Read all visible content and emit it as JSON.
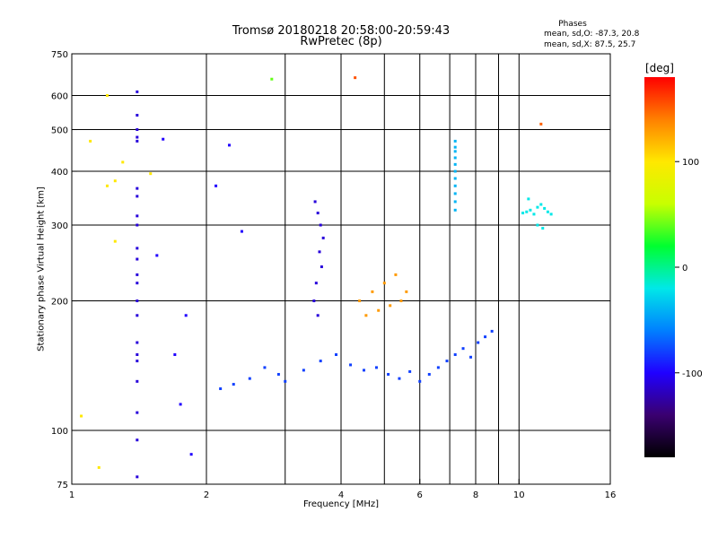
{
  "chart_data": {
    "type": "scatter",
    "title": "Tromsø 20180218 20:58:00-20:59:43",
    "subtitle": "RwPretec (8p)",
    "xlabel": "Frequency [MHz]",
    "ylabel": "Stationary phase Virtual Height [km]",
    "x_scale": "log",
    "y_scale": "log",
    "xlim": [
      1,
      16
    ],
    "ylim": [
      75,
      750
    ],
    "x_ticks": [
      1,
      2,
      4,
      6,
      8,
      10,
      16
    ],
    "y_ticks": [
      75,
      100,
      200,
      300,
      400,
      500,
      600,
      750
    ],
    "x_minor_ticks": [
      3,
      5,
      7,
      9
    ],
    "grid": true,
    "phases_title": "Phases",
    "phase_o": "mean, sd,O: -87.3, 20.8",
    "phase_x": "mean, sd,X:  87.5, 25.7",
    "colorbar": {
      "unit": "[deg]",
      "range": [
        -180,
        180
      ],
      "ticks": [
        100,
        0,
        -100
      ],
      "colors": [
        "#000000",
        "#3a0070",
        "#2000ff",
        "#0080ff",
        "#00e8e8",
        "#00ff30",
        "#c8ff00",
        "#ffe800",
        "#ff8000",
        "#ff0000"
      ]
    },
    "series": [
      {
        "x": [
          1.4,
          1.4,
          1.4,
          1.4,
          1.4,
          1.4,
          1.4,
          1.4,
          1.4,
          1.4,
          1.4,
          1.4,
          1.4,
          1.4,
          1.4,
          1.4,
          1.4,
          1.4,
          1.4,
          1.4,
          1.4,
          1.4
        ],
        "y": [
          612,
          540,
          500,
          480,
          470,
          365,
          350,
          315,
          300,
          265,
          250,
          230,
          220,
          200,
          185,
          160,
          150,
          145,
          130,
          110,
          95,
          78
        ],
        "phase": -110
      },
      {
        "x": [
          7.2,
          7.2,
          7.2,
          7.2,
          7.2,
          7.2,
          7.2,
          7.2,
          7.2,
          7.2,
          7.2
        ],
        "y": [
          470,
          455,
          445,
          430,
          415,
          400,
          385,
          370,
          355,
          340,
          325
        ],
        "phase": -40
      },
      {
        "x": [
          10.2,
          10.4,
          10.6,
          10.8,
          11.0,
          11.2,
          11.4,
          11.6,
          11.8,
          10.5,
          11.0,
          11.3
        ],
        "y": [
          320,
          322,
          325,
          318,
          330,
          335,
          328,
          322,
          318,
          345,
          300,
          295
        ],
        "phase": -20
      },
      {
        "x": [
          11.2
        ],
        "y": [
          515
        ],
        "phase": 150
      },
      {
        "x": [
          4.3
        ],
        "y": [
          660
        ],
        "phase": 155
      },
      {
        "x": [
          2.8
        ],
        "y": [
          655
        ],
        "phase": 40
      },
      {
        "x": [
          1.2,
          1.1,
          1.3,
          1.25,
          1.2,
          1.25,
          1.5,
          1.05,
          1.15
        ],
        "y": [
          600,
          470,
          420,
          380,
          370,
          275,
          395,
          108,
          82
        ],
        "phase": 100
      },
      {
        "x": [
          1.6,
          1.8,
          2.1,
          2.25,
          2.4,
          1.55,
          1.7,
          1.85,
          1.75
        ],
        "y": [
          475,
          185,
          370,
          460,
          290,
          255,
          150,
          88,
          115
        ],
        "phase": -100
      },
      {
        "x": [
          2.5,
          2.3,
          2.15,
          2.7,
          2.9,
          3.0,
          3.3,
          3.6,
          3.9,
          4.2,
          4.5,
          4.8,
          5.1,
          5.4,
          5.7,
          6.0,
          6.3,
          6.6,
          6.9,
          7.2,
          7.5,
          7.8,
          8.1,
          8.4,
          8.7
        ],
        "y": [
          132,
          128,
          125,
          140,
          135,
          130,
          138,
          145,
          150,
          142,
          138,
          140,
          135,
          132,
          137,
          130,
          135,
          140,
          145,
          150,
          155,
          148,
          160,
          165,
          170
        ],
        "phase": -80
      },
      {
        "x": [
          3.5,
          3.55,
          3.6,
          3.65,
          3.58,
          3.62,
          3.52,
          3.48,
          3.55
        ],
        "y": [
          340,
          320,
          300,
          280,
          260,
          240,
          220,
          200,
          185
        ],
        "phase": -110
      },
      {
        "x": [
          4.4,
          4.7,
          5.0,
          5.3,
          5.6,
          4.55,
          4.85,
          5.15,
          5.45
        ],
        "y": [
          200,
          210,
          220,
          230,
          210,
          185,
          190,
          195,
          200
        ],
        "phase": 130
      }
    ]
  }
}
